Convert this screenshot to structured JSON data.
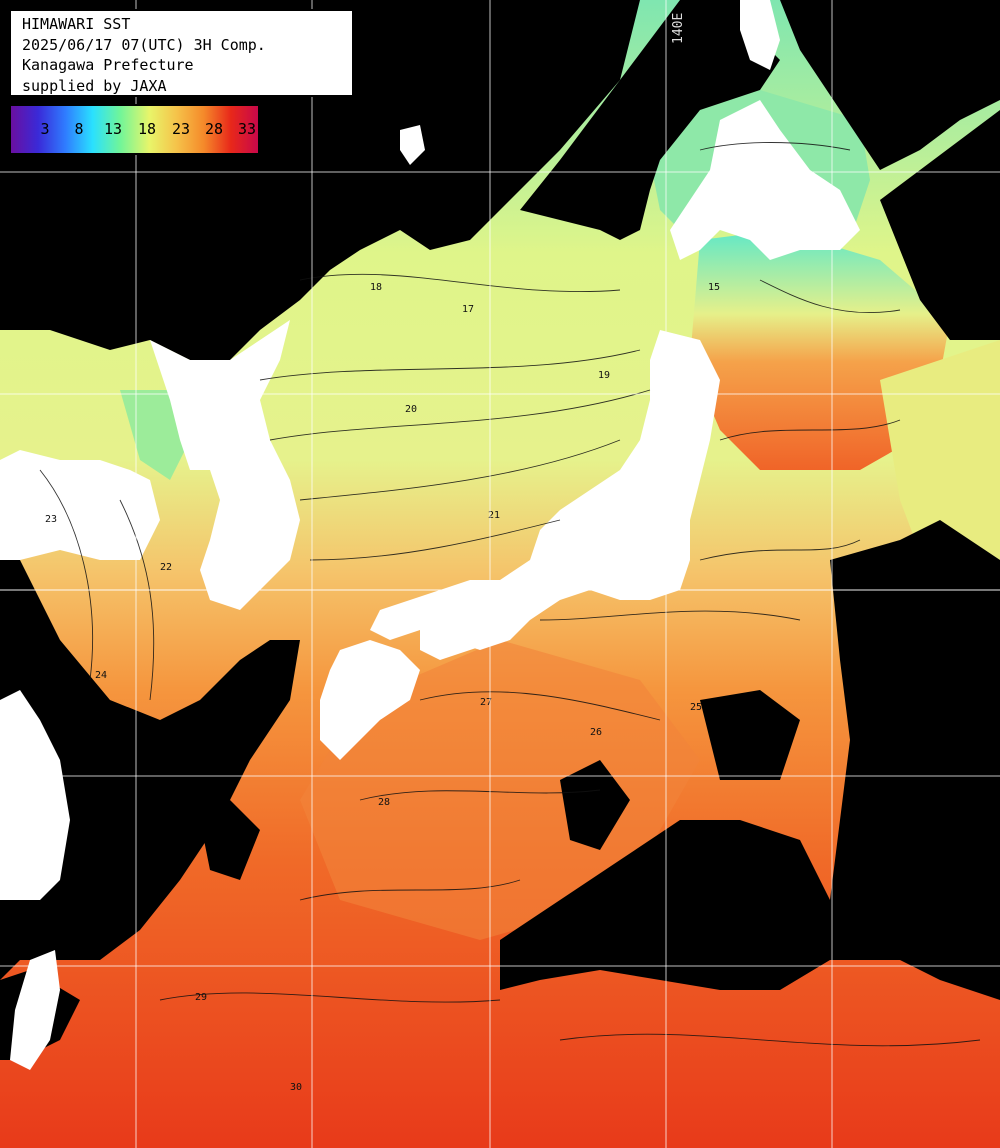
{
  "info": {
    "line1": "HIMAWARI SST",
    "line2": "2025/06/17 07(UTC) 3H Comp.",
    "line3": "Kanagawa Prefecture",
    "line4": "supplied by JAXA"
  },
  "scale": {
    "ticks": [
      "3",
      "8",
      "13",
      "18",
      "23",
      "28",
      "33"
    ],
    "colors": [
      "#6a0fa0",
      "#3a2ad8",
      "#2f7cff",
      "#2ae0ff",
      "#6ff59a",
      "#e8f56a",
      "#f5c34a",
      "#f58a2a",
      "#e8281a",
      "#c8084a"
    ]
  },
  "meridian_label": "140E",
  "contour_labels": [
    "15",
    "17",
    "18",
    "19",
    "20",
    "21",
    "22",
    "23",
    "24",
    "25",
    "26",
    "27",
    "28",
    "29",
    "30"
  ],
  "colors": {
    "land": "#ffffff",
    "cloud": "#000000",
    "sst_cold": "#7fe6b0",
    "sst_mid": "#e6f28c",
    "sst_warm": "#f5a24a",
    "sst_hot": "#e8401e"
  }
}
